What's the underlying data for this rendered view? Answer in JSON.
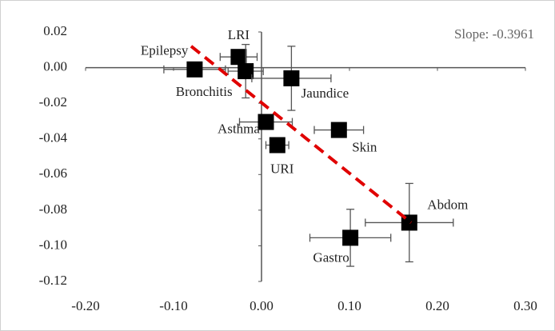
{
  "chart_data": {
    "type": "scatter",
    "annotation": "Slope: -0.3961",
    "xlim": [
      -0.2,
      0.3
    ],
    "ylim": [
      -0.12,
      0.02
    ],
    "xticks": [
      {
        "value": -0.2,
        "label": "-0.20"
      },
      {
        "value": -0.1,
        "label": "-0.10"
      },
      {
        "value": 0,
        "label": "0.00"
      },
      {
        "value": 0.1,
        "label": "0.10"
      },
      {
        "value": 0.2,
        "label": "0.20"
      },
      {
        "value": 0.3,
        "label": "0.30"
      }
    ],
    "yticks": [
      {
        "value": 0.02,
        "label": "0.02"
      },
      {
        "value": 0,
        "label": "0.00"
      },
      {
        "value": -0.02,
        "label": "-0.02"
      },
      {
        "value": -0.04,
        "label": "-0.04"
      },
      {
        "value": -0.06,
        "label": "-0.06"
      },
      {
        "value": -0.08,
        "label": "-0.08"
      },
      {
        "value": -0.1,
        "label": "-0.10"
      },
      {
        "value": -0.12,
        "label": "-0.12"
      }
    ],
    "color": "#000000",
    "trend_color": "#e00000",
    "trendline": {
      "x": [
        -0.08,
        0.17
      ],
      "y": [
        0.012,
        -0.087
      ]
    },
    "points": [
      {
        "label": "Epilepsy",
        "x": -0.076,
        "y": -0.001,
        "xerr": 0.035,
        "yerr": 0.002
      },
      {
        "label": "LRI",
        "x": -0.026,
        "y": 0.006,
        "xerr": 0.021,
        "yerr": 0.004
      },
      {
        "label": "Bronchitis",
        "x": -0.018,
        "y": -0.002,
        "xerr": 0.02,
        "yerr": 0.015
      },
      {
        "label": "Jaundice",
        "x": 0.034,
        "y": -0.006,
        "xerr": 0.045,
        "yerr": 0.018
      },
      {
        "label": "Asthma",
        "x": 0.005,
        "y": -0.0305,
        "xerr": 0.03,
        "yerr": 0.004
      },
      {
        "label": "Skin",
        "x": 0.088,
        "y": -0.035,
        "xerr": 0.028,
        "yerr": 0.002
      },
      {
        "label": "URI",
        "x": 0.018,
        "y": -0.0435,
        "xerr": 0.013,
        "yerr": 0.002
      },
      {
        "label": "Abdom",
        "x": 0.168,
        "y": -0.087,
        "xerr": 0.05,
        "yerr": 0.022
      },
      {
        "label": "Gastro",
        "x": 0.101,
        "y": -0.0955,
        "xerr": 0.046,
        "yerr": 0.016
      }
    ]
  }
}
